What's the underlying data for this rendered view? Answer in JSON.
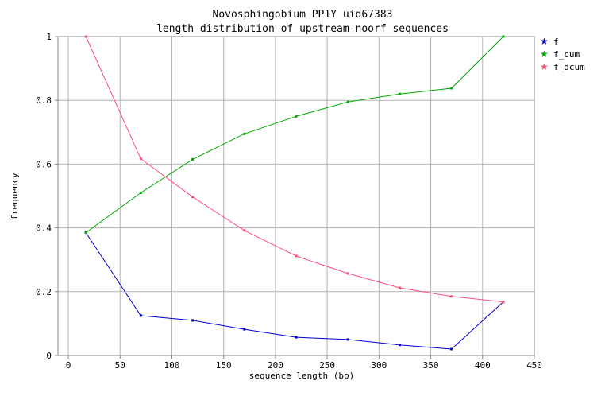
{
  "chart_data": {
    "type": "line",
    "title": "Novosphingobium PP1Y uid67383",
    "subtitle": "length distribution of upstream-noorf sequences",
    "xlabel": "sequence length (bp)",
    "ylabel": "frequency",
    "xlim": [
      -10,
      450
    ],
    "ylim": [
      0,
      1
    ],
    "xticks": [
      0,
      50,
      100,
      150,
      200,
      250,
      300,
      350,
      400,
      450
    ],
    "yticks": [
      0,
      0.2,
      0.4,
      0.6,
      0.8,
      1
    ],
    "xtick_labels": [
      "0",
      "50",
      "100",
      "150",
      "200",
      "250",
      "300",
      "350",
      "400",
      "450"
    ],
    "ytick_labels": [
      "0",
      "0.2",
      "0.4",
      "0.6",
      "0.8",
      "1"
    ],
    "grid": true,
    "legend_position": "right",
    "x": [
      17,
      70,
      120,
      170,
      220,
      270,
      320,
      370,
      420
    ],
    "series": [
      {
        "name": "f",
        "color": "#0000cc",
        "values": [
          0.385,
          0.125,
          0.11,
          0.082,
          0.057,
          0.05,
          0.033,
          0.02,
          0.168
        ]
      },
      {
        "name": "f_cum",
        "color": "#00aa00",
        "values": [
          0.385,
          0.51,
          0.615,
          0.695,
          0.75,
          0.795,
          0.82,
          0.838,
          1.0
        ]
      },
      {
        "name": "f_dcum",
        "color": "#ff4d7a",
        "values": [
          1.0,
          0.617,
          0.497,
          0.392,
          0.312,
          0.257,
          0.212,
          0.185,
          0.168
        ]
      }
    ]
  }
}
